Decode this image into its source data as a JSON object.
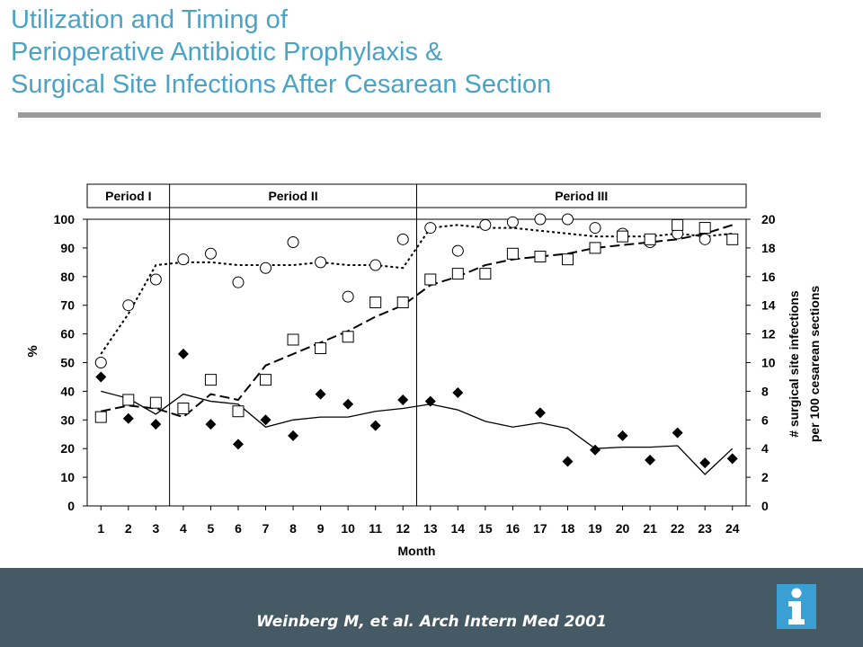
{
  "slide": {
    "title_lines": [
      "Utilization and Timing of",
      "Perioperative Antibiotic Prophylaxis &",
      "Surgical Site Infections After Cesarean Section"
    ],
    "citation": "Weinberg M, et al. Arch Intern Med 2001",
    "colors": {
      "title": "#4aa3c6",
      "footer": "#465a66",
      "info_icon": "#3aa0d4"
    },
    "icons": [
      "info-icon"
    ]
  },
  "chart_data": {
    "type": "line",
    "title": "",
    "xlabel": "Month",
    "ylabel": "%",
    "y2label_lines": [
      "# surgical site infections",
      "per 100 cesarean sections"
    ],
    "x": [
      1,
      2,
      3,
      4,
      5,
      6,
      7,
      8,
      9,
      10,
      11,
      12,
      13,
      14,
      15,
      16,
      17,
      18,
      19,
      20,
      21,
      22,
      23,
      24
    ],
    "xlim": [
      0.5,
      24.5
    ],
    "ylim": [
      0,
      100
    ],
    "y2lim": [
      0,
      20
    ],
    "yticks": [
      0,
      10,
      20,
      30,
      40,
      50,
      60,
      70,
      80,
      90,
      100
    ],
    "y2ticks": [
      0,
      2,
      4,
      6,
      8,
      10,
      12,
      14,
      16,
      18,
      20
    ],
    "grid": false,
    "periods": [
      {
        "label": "Period I",
        "start": 0.5,
        "end": 3.5
      },
      {
        "label": "Period II",
        "start": 3.5,
        "end": 12.5
      },
      {
        "label": "Period III",
        "start": 12.5,
        "end": 24.5
      }
    ],
    "series": [
      {
        "marker": "circle",
        "axis": "left",
        "values": [
          50,
          70,
          79,
          86,
          88,
          78,
          83,
          92,
          85,
          73,
          84,
          93,
          97,
          89,
          98,
          99,
          100,
          100,
          97,
          95,
          92,
          95,
          93,
          null
        ],
        "trend_style": "dotted",
        "trend": [
          53,
          67,
          84,
          85,
          85,
          84,
          84,
          84,
          85,
          84,
          84,
          83,
          97,
          98,
          97,
          97,
          96,
          95,
          94,
          94,
          94,
          95,
          94,
          95
        ]
      },
      {
        "marker": "square",
        "axis": "left",
        "values": [
          31,
          37,
          36,
          34,
          44,
          33,
          44,
          58,
          55,
          59,
          71,
          71,
          79,
          81,
          81,
          88,
          87,
          86,
          90,
          94,
          93,
          98,
          97,
          93
        ],
        "trend_style": "dashed",
        "trend": [
          33,
          35,
          34,
          31,
          39,
          37,
          49,
          53,
          57,
          61,
          66,
          70,
          77,
          80,
          84,
          86,
          87,
          88,
          90,
          91,
          92,
          93,
          95,
          98
        ]
      },
      {
        "marker": "diamond",
        "axis": "right",
        "values": [
          9,
          6.1,
          5.7,
          10.6,
          5.7,
          4.3,
          6,
          4.9,
          7.8,
          7.1,
          5.6,
          7.4,
          7.3,
          7.9,
          null,
          null,
          6.5,
          3.1,
          3.9,
          4.9,
          3.2,
          5.1,
          3,
          3.3
        ],
        "trend_style": "solid",
        "trend": [
          8,
          7.5,
          6.4,
          7.8,
          7.3,
          7.1,
          5.5,
          6,
          6.2,
          6.2,
          6.6,
          6.8,
          7.1,
          6.7,
          5.9,
          5.5,
          5.8,
          5.4,
          4,
          4.1,
          4.1,
          4.2,
          2.2,
          4
        ]
      }
    ]
  }
}
